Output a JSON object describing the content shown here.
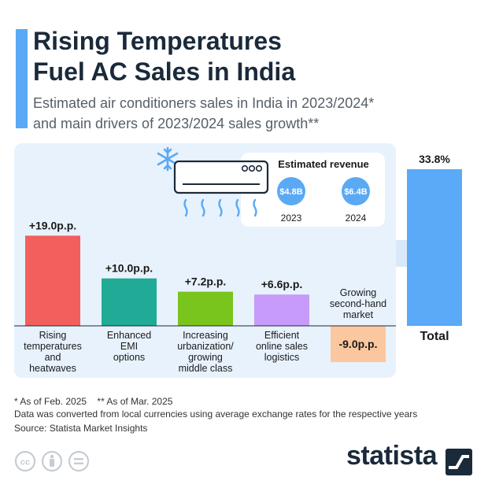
{
  "header": {
    "title_line1": "Rising Temperatures",
    "title_line2": "Fuel AC Sales in India",
    "subtitle_line1": "Estimated air conditioners sales in India in 2023/2024*",
    "subtitle_line2": "and main drivers of 2023/2024 sales growth**"
  },
  "revenue_callout": {
    "title": "Estimated revenue",
    "items": [
      {
        "value": "$4.8B",
        "year": "2023"
      },
      {
        "value": "$6.4B",
        "year": "2024"
      }
    ]
  },
  "chart_data": {
    "type": "bar",
    "title": "Main drivers of 2023/2024 AC sales growth in India",
    "unit": "p.p.",
    "categories": [
      "Rising temperatures and heatwaves",
      "Enhanced EMI options",
      "Increasing urbanization/ growing middle class",
      "Efficient online sales logistics",
      "Growing second-hand market",
      "Total"
    ],
    "values": [
      19.0,
      10.0,
      7.2,
      6.6,
      -9.0,
      33.8
    ],
    "value_labels": [
      "+19.0p.p.",
      "+10.0p.p.",
      "+7.2p.p.",
      "+6.6p.p.",
      "-9.0p.p.",
      "33.8%"
    ],
    "category_label_lines": [
      [
        "Rising",
        "temperatures",
        "and",
        "heatwaves"
      ],
      [
        "Enhanced",
        "EMI",
        "options"
      ],
      [
        "Increasing",
        "urbanization/",
        "growing",
        "middle class"
      ],
      [
        "Efficient",
        "online sales",
        "logistics"
      ],
      [
        "Growing",
        "second-hand",
        "market"
      ],
      [
        "Total"
      ]
    ],
    "colors": [
      "#f25f5c",
      "#1fab96",
      "#7ac41e",
      "#c79bfa",
      "#fbc79f",
      "#5aaaf8"
    ]
  },
  "footnotes": {
    "line1": "* As of Feb. 2025    ** As of Mar. 2025",
    "line2": "Data was converted from local currencies using average exchange rates for the respective years",
    "source": "Source: Statista Market Insights"
  },
  "brand": {
    "name": "statista"
  }
}
